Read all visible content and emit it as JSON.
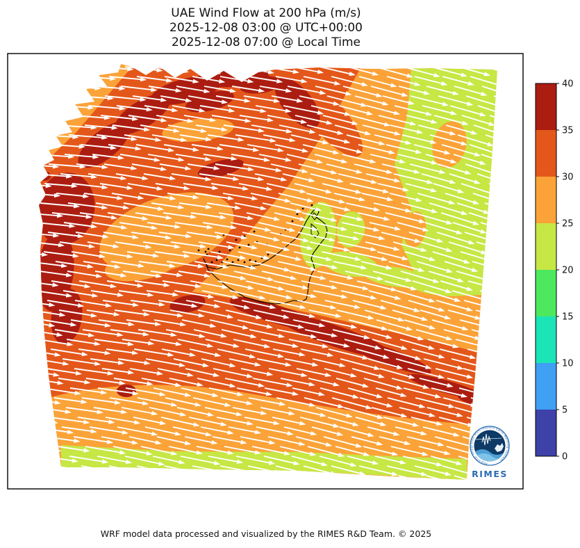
{
  "header": {
    "title": "UAE Wind Flow at 200 hPa (m/s)",
    "time_utc": "2025-12-08 03:00 @ UTC+00:00",
    "time_local": "2025-12-08 07:00 @ Local Time"
  },
  "footer": {
    "caption": "WRF model data processed and visualized by the RIMES R&D Team. © 2025"
  },
  "logo": {
    "name": "RIMES",
    "ring_text": "Regional Integrated Multi-Hazard Early Warning System",
    "brand_color": "#2B6CB0",
    "inner_color": "#0E3A66"
  },
  "chart_data": {
    "type": "heatmap",
    "title": "UAE Wind Flow at 200 hPa (m/s)",
    "valid_time_utc": "2025-12-08 03:00 @ UTC+00:00",
    "valid_time_local": "2025-12-08 07:00 @ Local Time",
    "variable": "wind speed at 200 hPa",
    "units": "m/s",
    "colorbar": {
      "ticks": [
        0,
        5,
        10,
        15,
        20,
        25,
        30,
        35,
        40
      ],
      "range": [
        0,
        40
      ],
      "segment_colors_bottom_to_top": [
        "#3D41A8",
        "#3FA0F4",
        "#1BE4B6",
        "#4DE85E",
        "#C6E744",
        "#FBA338",
        "#E4571A",
        "#AC1D11"
      ]
    },
    "flow_direction": "westerly: white quiver arrows point east, tilting east-southeast over the northeast and southern parts of the domain",
    "features": [
      {
        "region": "northwest / top-left of domain",
        "speed_range_ms": [
          30,
          40
        ]
      },
      {
        "region": "east and northeast of domain",
        "speed_range_ms": [
          20,
          25
        ]
      },
      {
        "region": "center of domain over the UAE",
        "speed_range_ms": [
          25,
          30
        ]
      },
      {
        "region": "jet streak band southeast of the UAE",
        "speed_range_ms": [
          35,
          40
        ]
      },
      {
        "region": "southern edge strip of domain",
        "speed_range_ms": [
          20,
          25
        ]
      }
    ],
    "overlay": "UAE coastline, islands and borders drawn in black; white wind arrows over filled speed contours",
    "legend_position": "right vertical colorbar"
  },
  "wind_field": {
    "arrow_color": "#ffffff",
    "row_spacing": 14,
    "col_spacing": 40,
    "base_arrow_length": 46
  }
}
